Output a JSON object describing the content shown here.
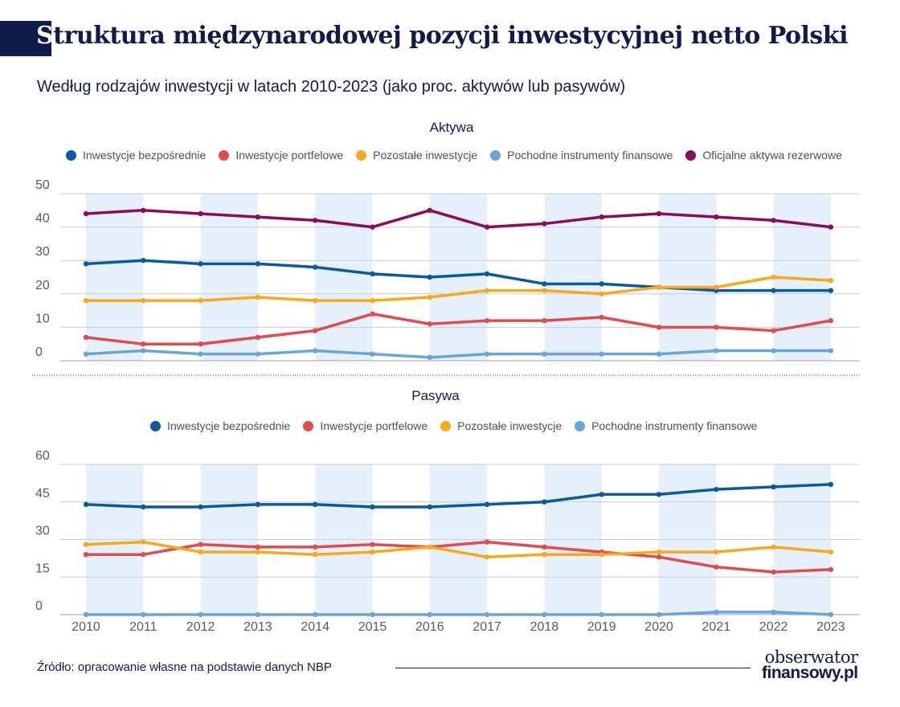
{
  "title": "Struktura międzynarodowej pozycji inwestycyjnej netto Polski",
  "title_first_letter": "S",
  "title_rest": "truktura międzynarodowej pozycji inwestycyjnej netto Polski",
  "subtitle": "Według rodzajów inwestycji w latach 2010-2023 (jako proc. aktywów lub pasywów)",
  "source": "Źródło: opracowanie własne na podstawie danych NBP",
  "logo": {
    "line1": "obserwator",
    "line2": "finansowy.pl"
  },
  "colors": {
    "blue_dark": "#0a5aa0",
    "red": "#e24a4f",
    "orange": "#f7a81b",
    "blue_light": "#6aa4dc",
    "purple": "#8b0b5c",
    "band": "#e6f0fa",
    "title": "#101a4d"
  },
  "chart_data": [
    {
      "type": "line",
      "title": "Aktywa",
      "x": [
        2010,
        2011,
        2012,
        2013,
        2014,
        2015,
        2016,
        2017,
        2018,
        2019,
        2020,
        2021,
        2022,
        2023
      ],
      "ylim": [
        0,
        50
      ],
      "yticks": [
        0,
        10,
        20,
        30,
        40,
        50
      ],
      "legend_position": "top",
      "series": [
        {
          "name": "Inwestycje bezpośrednie",
          "color": "#0a5aa0",
          "values": [
            29,
            30,
            29,
            29,
            28,
            26,
            25,
            26,
            23,
            23,
            22,
            21,
            21,
            21
          ]
        },
        {
          "name": "Inwestycje portfelowe",
          "color": "#e24a4f",
          "values": [
            7,
            5,
            5,
            7,
            9,
            14,
            11,
            12,
            12,
            13,
            10,
            10,
            9,
            12
          ]
        },
        {
          "name": "Pozostałe inwestycje",
          "color": "#f7a81b",
          "values": [
            18,
            18,
            18,
            19,
            18,
            18,
            19,
            21,
            21,
            20,
            22,
            22,
            25,
            24
          ]
        },
        {
          "name": "Pochodne instrumenty finansowe",
          "color": "#6aa4dc",
          "values": [
            2,
            3,
            2,
            2,
            3,
            2,
            1,
            2,
            2,
            2,
            2,
            3,
            3,
            3
          ]
        },
        {
          "name": "Oficjalne aktywa rezerwowe",
          "color": "#8b0b5c",
          "values": [
            44,
            45,
            44,
            43,
            42,
            40,
            45,
            40,
            41,
            43,
            44,
            43,
            42,
            40
          ]
        }
      ]
    },
    {
      "type": "line",
      "title": "Pasywa",
      "x": [
        2010,
        2011,
        2012,
        2013,
        2014,
        2015,
        2016,
        2017,
        2018,
        2019,
        2020,
        2021,
        2022,
        2023
      ],
      "ylim": [
        0,
        60
      ],
      "yticks": [
        0,
        15,
        30,
        45,
        60
      ],
      "legend_position": "top",
      "series": [
        {
          "name": "Inwestycje bezpośrednie",
          "color": "#0a5aa0",
          "values": [
            44,
            43,
            43,
            44,
            44,
            43,
            43,
            44,
            45,
            48,
            48,
            50,
            51,
            52
          ]
        },
        {
          "name": "Inwestycje portfelowe",
          "color": "#e24a4f",
          "values": [
            24,
            24,
            28,
            27,
            27,
            28,
            27,
            29,
            27,
            25,
            23,
            19,
            17,
            18
          ]
        },
        {
          "name": "Pozostałe inwestycje",
          "color": "#f7a81b",
          "values": [
            28,
            29,
            25,
            25,
            24,
            25,
            27,
            23,
            24,
            24,
            25,
            25,
            27,
            25
          ]
        },
        {
          "name": "Pochodne instrumenty finansowe",
          "color": "#6aa4dc",
          "values": [
            0,
            0,
            0,
            0,
            0,
            0,
            0,
            0,
            0,
            0,
            0,
            1,
            1,
            0
          ]
        }
      ]
    }
  ]
}
